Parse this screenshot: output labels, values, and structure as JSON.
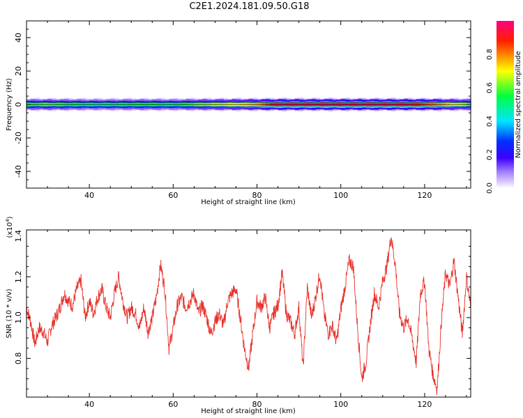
{
  "title": "C2E1.2024.181.09.50.G18",
  "chart_data": [
    {
      "type": "heatmap",
      "xlabel": "Height of straight line (km)",
      "ylabel": "Frequency (Hz)",
      "xlim": [
        25,
        131
      ],
      "ylim": [
        -50,
        50
      ],
      "x_ticks": [
        40,
        60,
        80,
        100,
        120
      ],
      "y_ticks": [
        -40,
        -20,
        0,
        20,
        40
      ],
      "band_center_hz": 0,
      "band_halfwidth_hz": 3,
      "colorbar": {
        "label": "Normalized spectral amplitude",
        "range": [
          0,
          1
        ],
        "ticks": [
          "0.0",
          "0.2",
          "0.4",
          "0.6",
          "0.8"
        ],
        "colors": [
          "#ffffff",
          "#b48cff",
          "#3c00ff",
          "#0000ff",
          "#00ffff",
          "#00ff00",
          "#ffff00",
          "#ff0000",
          "#ff0080"
        ]
      },
      "peak_amplitude_by_height": [
        {
          "x": 25,
          "amp": 0.55
        },
        {
          "x": 30,
          "amp": 0.6
        },
        {
          "x": 35,
          "amp": 0.55
        },
        {
          "x": 40,
          "amp": 0.5
        },
        {
          "x": 45,
          "amp": 0.5
        },
        {
          "x": 50,
          "amp": 0.55
        },
        {
          "x": 55,
          "amp": 0.55
        },
        {
          "x": 60,
          "amp": 0.5
        },
        {
          "x": 65,
          "amp": 0.6
        },
        {
          "x": 70,
          "amp": 0.65
        },
        {
          "x": 75,
          "amp": 0.7
        },
        {
          "x": 80,
          "amp": 0.75
        },
        {
          "x": 85,
          "amp": 0.95
        },
        {
          "x": 90,
          "amp": 0.95
        },
        {
          "x": 95,
          "amp": 0.95
        },
        {
          "x": 100,
          "amp": 0.95
        },
        {
          "x": 105,
          "amp": 0.95
        },
        {
          "x": 110,
          "amp": 0.95
        },
        {
          "x": 115,
          "amp": 0.95
        },
        {
          "x": 120,
          "amp": 0.85
        },
        {
          "x": 125,
          "amp": 0.75
        },
        {
          "x": 131,
          "amp": 0.6
        }
      ]
    },
    {
      "type": "line",
      "xlabel": "Height of straight line (km)",
      "ylabel": "SNR (10 * v/v)",
      "y_scale_label": "(x10",
      "y_scale_exponent": "4",
      "y_scale_suffix": ")",
      "xlim": [
        25,
        131
      ],
      "ylim": [
        0.61,
        1.43
      ],
      "x_ticks": [
        40,
        60,
        80,
        100,
        120
      ],
      "y_ticks": [
        "0.8",
        "1.0",
        "1.2",
        "1.4"
      ],
      "y_tick_values": [
        0.8,
        1.0,
        1.2,
        1.4
      ],
      "color": "#e8302a",
      "series": [
        {
          "x": [
            25,
            26,
            27,
            28,
            29,
            30,
            31,
            32,
            33,
            34,
            35,
            36,
            37,
            38,
            39,
            40,
            41,
            42,
            43,
            44,
            45,
            46,
            47,
            48,
            49,
            50,
            51,
            52,
            53,
            54,
            55,
            56,
            57,
            58,
            59,
            60,
            61,
            62,
            63,
            64,
            65,
            66,
            67,
            68,
            69,
            70,
            71,
            72,
            73,
            74,
            75,
            76,
            77,
            78,
            79,
            80,
            81,
            82,
            83,
            84,
            85,
            86,
            87,
            88,
            89,
            90,
            91,
            92,
            93,
            94,
            95,
            96,
            97,
            98,
            99,
            100,
            101,
            102,
            103,
            104,
            105,
            106,
            107,
            108,
            109,
            110,
            111,
            112,
            113,
            114,
            115,
            116,
            117,
            118,
            119,
            120,
            121,
            122,
            123,
            124,
            125,
            126,
            127,
            128,
            129,
            130,
            131
          ],
          "y": [
            1.05,
            0.98,
            0.87,
            0.95,
            0.93,
            0.88,
            0.96,
            1.0,
            1.05,
            1.12,
            1.08,
            1.06,
            1.14,
            1.18,
            1.0,
            1.08,
            1.02,
            1.1,
            1.14,
            1.05,
            1.0,
            1.12,
            1.2,
            1.08,
            1.0,
            1.05,
            1.02,
            0.95,
            1.05,
            0.93,
            1.0,
            1.1,
            1.26,
            1.14,
            0.85,
            0.95,
            1.06,
            1.1,
            1.05,
            1.08,
            1.12,
            1.02,
            1.06,
            1.0,
            0.92,
            0.98,
            1.02,
            0.96,
            1.08,
            1.12,
            1.14,
            1.0,
            0.85,
            0.75,
            0.92,
            1.08,
            1.05,
            1.1,
            0.95,
            1.02,
            1.06,
            1.22,
            1.02,
            0.98,
            0.92,
            1.05,
            0.75,
            1.15,
            1.0,
            1.1,
            1.22,
            1.02,
            0.92,
            0.96,
            0.88,
            1.04,
            1.15,
            1.28,
            1.25,
            0.95,
            0.7,
            0.78,
            0.96,
            1.12,
            1.05,
            1.18,
            1.25,
            1.4,
            1.26,
            1.02,
            0.95,
            1.0,
            0.9,
            0.78,
            1.12,
            1.18,
            0.85,
            0.72,
            0.65,
            0.98,
            1.22,
            1.15,
            1.28,
            1.1,
            0.92,
            1.2,
            1.05
          ]
        }
      ]
    }
  ]
}
